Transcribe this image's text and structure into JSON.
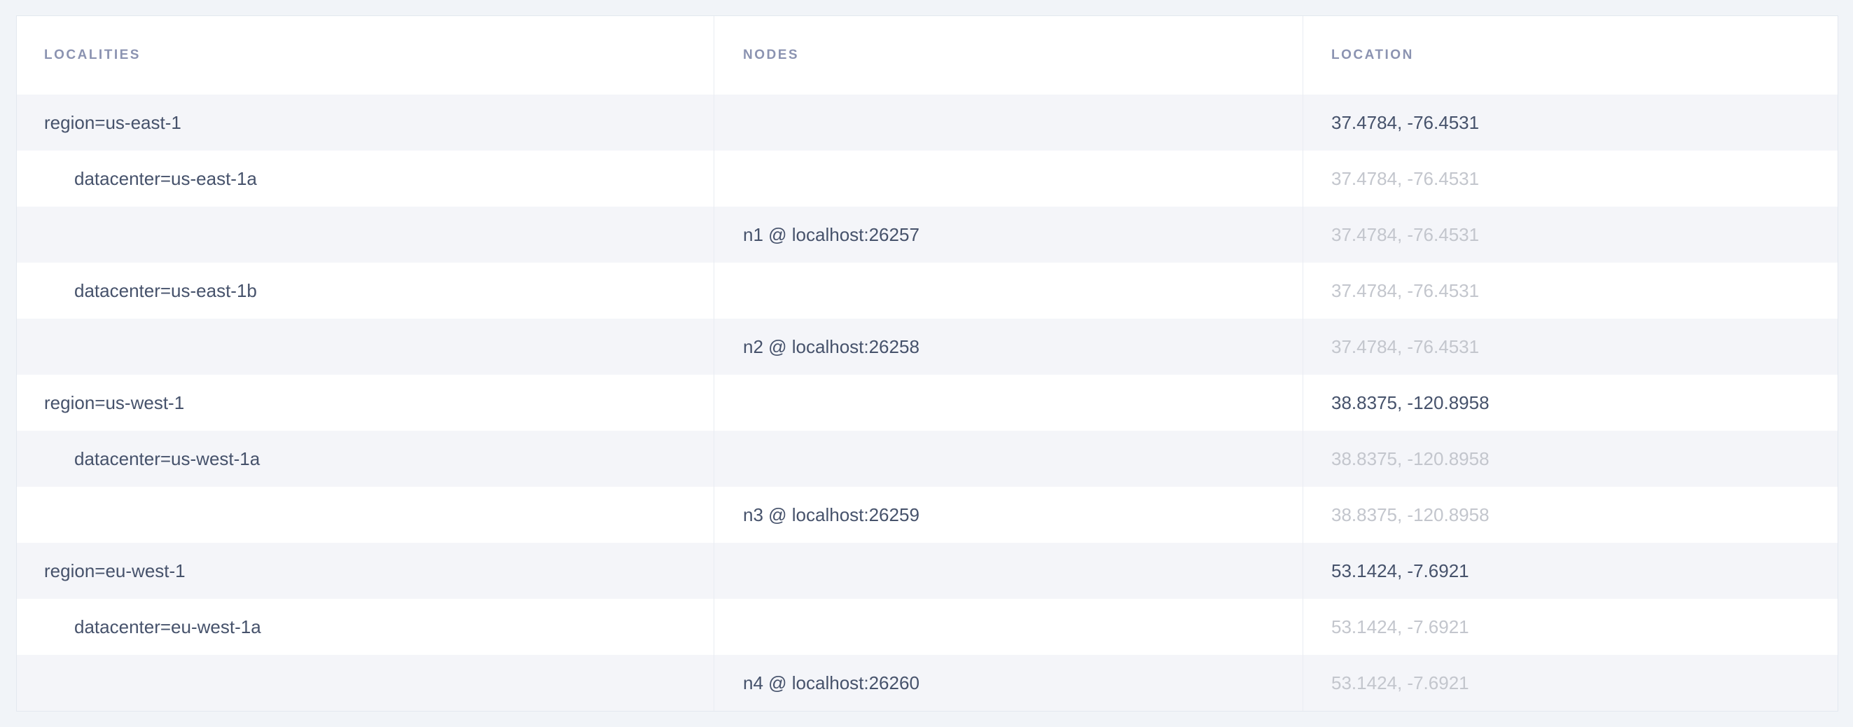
{
  "table": {
    "columns": [
      {
        "key": "localities",
        "label": "LOCALITIES"
      },
      {
        "key": "nodes",
        "label": "NODES"
      },
      {
        "key": "location",
        "label": "LOCATION"
      }
    ],
    "rows": [
      {
        "locality": "region=us-east-1",
        "indent": 0,
        "node": "",
        "location": "37.4784, -76.4531",
        "location_muted": false
      },
      {
        "locality": "datacenter=us-east-1a",
        "indent": 1,
        "node": "",
        "location": "37.4784, -76.4531",
        "location_muted": true
      },
      {
        "locality": "",
        "indent": 0,
        "node": "n1 @ localhost:26257",
        "location": "37.4784, -76.4531",
        "location_muted": true
      },
      {
        "locality": "datacenter=us-east-1b",
        "indent": 1,
        "node": "",
        "location": "37.4784, -76.4531",
        "location_muted": true
      },
      {
        "locality": "",
        "indent": 0,
        "node": "n2 @ localhost:26258",
        "location": "37.4784, -76.4531",
        "location_muted": true
      },
      {
        "locality": "region=us-west-1",
        "indent": 0,
        "node": "",
        "location": "38.8375, -120.8958",
        "location_muted": false
      },
      {
        "locality": "datacenter=us-west-1a",
        "indent": 1,
        "node": "",
        "location": "38.8375, -120.8958",
        "location_muted": true
      },
      {
        "locality": "",
        "indent": 0,
        "node": "n3 @ localhost:26259",
        "location": "38.8375, -120.8958",
        "location_muted": true
      },
      {
        "locality": "region=eu-west-1",
        "indent": 0,
        "node": "",
        "location": "53.1424, -7.6921",
        "location_muted": false
      },
      {
        "locality": "datacenter=eu-west-1a",
        "indent": 1,
        "node": "",
        "location": "53.1424, -7.6921",
        "location_muted": true
      },
      {
        "locality": "",
        "indent": 0,
        "node": "n4 @ localhost:26260",
        "location": "53.1424, -7.6921",
        "location_muted": true
      }
    ]
  },
  "colors": {
    "page_background": "#f1f4f8",
    "table_background": "#ffffff",
    "row_stripe": "#f4f5f9",
    "table_border": "#e3e8ef",
    "column_divider": "#e9ecf2",
    "header_text": "#8b93b1",
    "body_text": "#46526b",
    "muted_text": "#c3c6cd"
  }
}
